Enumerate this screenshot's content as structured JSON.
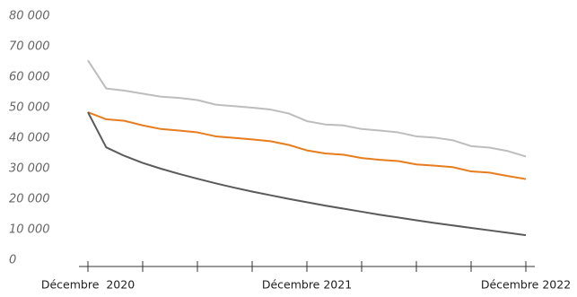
{
  "chart_data": {
    "type": "line",
    "categories": [
      "Décembre  2020",
      null,
      null,
      null,
      null,
      null,
      null,
      null,
      null,
      null,
      null,
      null,
      "Décembre 2021",
      null,
      null,
      null,
      null,
      null,
      null,
      null,
      null,
      null,
      null,
      null,
      "Décembre 2022"
    ],
    "series": [
      {
        "color": "#bdbdbd",
        "values": [
          65500,
          56300,
          55600,
          54600,
          53600,
          53200,
          52500,
          51000,
          50500,
          50000,
          49400,
          48100,
          45600,
          44500,
          44200,
          43000,
          42500,
          41900,
          40600,
          40200,
          39300,
          37400,
          36900,
          35800,
          34000
        ]
      },
      {
        "color": "#e87d1e",
        "values": [
          48500,
          46200,
          45700,
          44200,
          43000,
          42500,
          41900,
          40600,
          40100,
          39600,
          39000,
          37800,
          36000,
          35000,
          34600,
          33500,
          32900,
          32500,
          31400,
          31000,
          30500,
          29100,
          28700,
          27600,
          26600
        ]
      },
      {
        "color": "#5a5a5a",
        "values": [
          48500,
          37000,
          34200,
          31900,
          30000,
          28300,
          26700,
          25200,
          23800,
          22500,
          21300,
          20100,
          19000,
          17900,
          16900,
          15900,
          14900,
          14000,
          13100,
          12200,
          11400,
          10600,
          9800,
          9000,
          8200
        ]
      }
    ],
    "ylim": [
      0,
      80000
    ],
    "yticks": [
      0,
      {
        "value": 10000,
        "label": "10 000"
      },
      {
        "value": 20000,
        "label": "20 000"
      },
      {
        "value": 30000,
        "label": "30 000"
      },
      {
        "value": 40000,
        "label": "40 000"
      },
      {
        "value": 50000,
        "label": "50 000"
      },
      {
        "value": 60000,
        "label": "60 000"
      },
      {
        "value": 70000,
        "label": "70 000"
      },
      {
        "value": 80000,
        "label": "80 000"
      }
    ]
  }
}
